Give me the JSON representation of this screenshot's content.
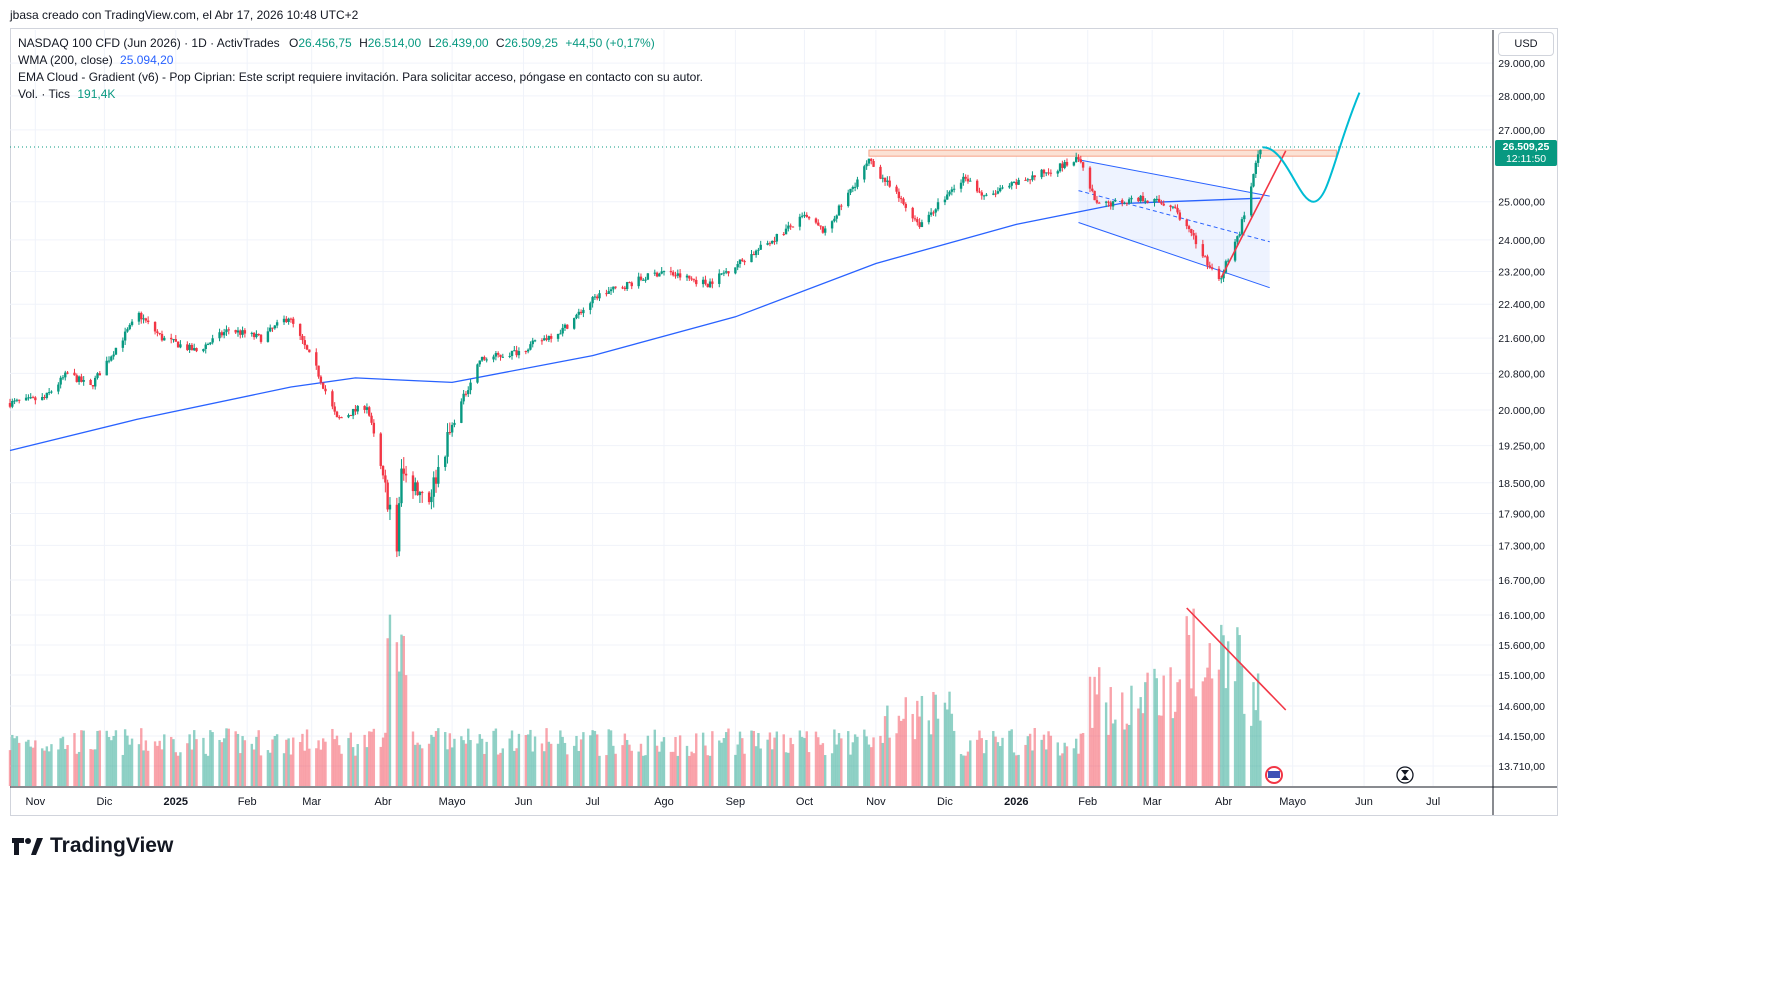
{
  "header": {
    "credit": "jbasa creado con TradingView.com, el Abr 17, 2026 10:48 UTC+2"
  },
  "legend": {
    "symbol": "NASDAQ 100 CFD (Jun 2026) · 1D · ActivTrades",
    "o_label": "O",
    "o_value": "26.456,75",
    "h_label": "H",
    "h_value": "26.514,00",
    "l_label": "L",
    "l_value": "26.439,00",
    "c_label": "C",
    "c_value": "26.509,25",
    "change": "+44,50 (+0,17%)",
    "wma_label": "WMA (200, close)",
    "wma_value": "25.094,20",
    "ema_cloud": "EMA Cloud - Gradient (v6) - Pop Ciprian: Este script requiere invitación. Para solicitar acceso, póngase en contacto con su autor.",
    "vol_label": "Vol. · Tics",
    "vol_value": "191,4K"
  },
  "currency_button": "USD",
  "last_price": {
    "price": "26.509,25",
    "countdown": "12:11:50"
  },
  "brand": {
    "name": "TradingView"
  },
  "colors": {
    "up": "#089981",
    "down": "#f23645",
    "wma": "#2962ff",
    "grid": "#f0f3fa",
    "resistance": "#f7a286",
    "trend_red": "#f23645",
    "projection": "#00bcd4",
    "channel": "#2962ff"
  },
  "chart_data": {
    "type": "candlestick",
    "title": "NASDAQ 100 CFD (Jun 2026) · 1D · ActivTrades",
    "y_ticks": [
      "29.000,00",
      "28.000,00",
      "27.000,00",
      "25.000,00",
      "24.000,00",
      "23.200,00",
      "22.400,00",
      "21.600,00",
      "20.800,00",
      "20.000,00",
      "19.250,00",
      "18.500,00",
      "17.900,00",
      "17.300,00",
      "16.700,00",
      "16.100,00",
      "15.600,00",
      "15.100,00",
      "14.600,00",
      "14.150,00",
      "13.710,00"
    ],
    "x_ticks": [
      "Nov",
      "Dic",
      "2025",
      "Feb",
      "Mar",
      "Abr",
      "Mayo",
      "Jun",
      "Jul",
      "Ago",
      "Sep",
      "Oct",
      "Nov",
      "Dic",
      "2026",
      "Feb",
      "Mar",
      "Abr",
      "Mayo",
      "Jun",
      "Jul"
    ],
    "price_path": [
      [
        "2024-10-21",
        20150
      ],
      [
        "2024-11-05",
        20250
      ],
      [
        "2024-11-15",
        20800
      ],
      [
        "2024-11-25",
        20500
      ],
      [
        "2024-12-05",
        21300
      ],
      [
        "2024-12-16",
        22150
      ],
      [
        "2024-12-26",
        21600
      ],
      [
        "2025-01-10",
        21300
      ],
      [
        "2025-01-24",
        21800
      ],
      [
        "2025-02-07",
        21600
      ],
      [
        "2025-02-19",
        22100
      ],
      [
        "2025-03-03",
        20900
      ],
      [
        "2025-03-12",
        19800
      ],
      [
        "2025-03-25",
        20100
      ],
      [
        "2025-04-07",
        17300
      ],
      [
        "2025-04-09",
        18700
      ],
      [
        "2025-04-21",
        18200
      ],
      [
        "2025-05-02",
        19800
      ],
      [
        "2025-05-13",
        21100
      ],
      [
        "2025-05-30",
        21300
      ],
      [
        "2025-06-18",
        21800
      ],
      [
        "2025-07-03",
        22600
      ],
      [
        "2025-07-31",
        23200
      ],
      [
        "2025-08-20",
        22900
      ],
      [
        "2025-09-10",
        23700
      ],
      [
        "2025-10-01",
        24600
      ],
      [
        "2025-10-10",
        24200
      ],
      [
        "2025-10-29",
        26100
      ],
      [
        "2025-11-20",
        24400
      ],
      [
        "2025-12-10",
        25700
      ],
      [
        "2025-12-18",
        25100
      ],
      [
        "2026-01-05",
        25600
      ],
      [
        "2026-01-28",
        26150
      ],
      [
        "2026-02-05",
        24900
      ],
      [
        "2026-02-25",
        25100
      ],
      [
        "2026-03-10",
        24900
      ],
      [
        "2026-03-30",
        22950
      ],
      [
        "2026-04-08",
        24200
      ],
      [
        "2026-04-17",
        26509.25
      ]
    ],
    "wma_200": [
      [
        "2024-10-21",
        19150
      ],
      [
        "2024-12-15",
        19800
      ],
      [
        "2025-02-20",
        20500
      ],
      [
        "2025-03-20",
        20700
      ],
      [
        "2025-05-01",
        20600
      ],
      [
        "2025-07-01",
        21200
      ],
      [
        "2025-09-01",
        22100
      ],
      [
        "2025-11-01",
        23400
      ],
      [
        "2026-01-01",
        24400
      ],
      [
        "2026-02-15",
        24950
      ],
      [
        "2026-04-17",
        25094.2
      ]
    ],
    "annotations": [
      {
        "type": "resistance_zone",
        "from": "2025-10-29",
        "to": "2026-05-20",
        "low": 26250,
        "high": 26420
      },
      {
        "type": "descending_channel",
        "from": "2026-01-28",
        "to": "2026-04-08"
      },
      {
        "type": "trend_line",
        "from": [
          "2026-03-31",
          23050
        ],
        "to": [
          "2026-04-28",
          26400
        ]
      },
      {
        "type": "projection",
        "points": [
          [
            "2026-04-18",
            26500
          ],
          [
            "2026-04-28",
            26300
          ],
          [
            "2026-05-10",
            25000
          ],
          [
            "2026-05-30",
            28100
          ]
        ]
      },
      {
        "type": "volume_downtrend",
        "from": "2026-03-16",
        "to": "2026-04-28"
      }
    ],
    "volume_label": "Vol. · Tics",
    "last_volume": "191,4K"
  }
}
